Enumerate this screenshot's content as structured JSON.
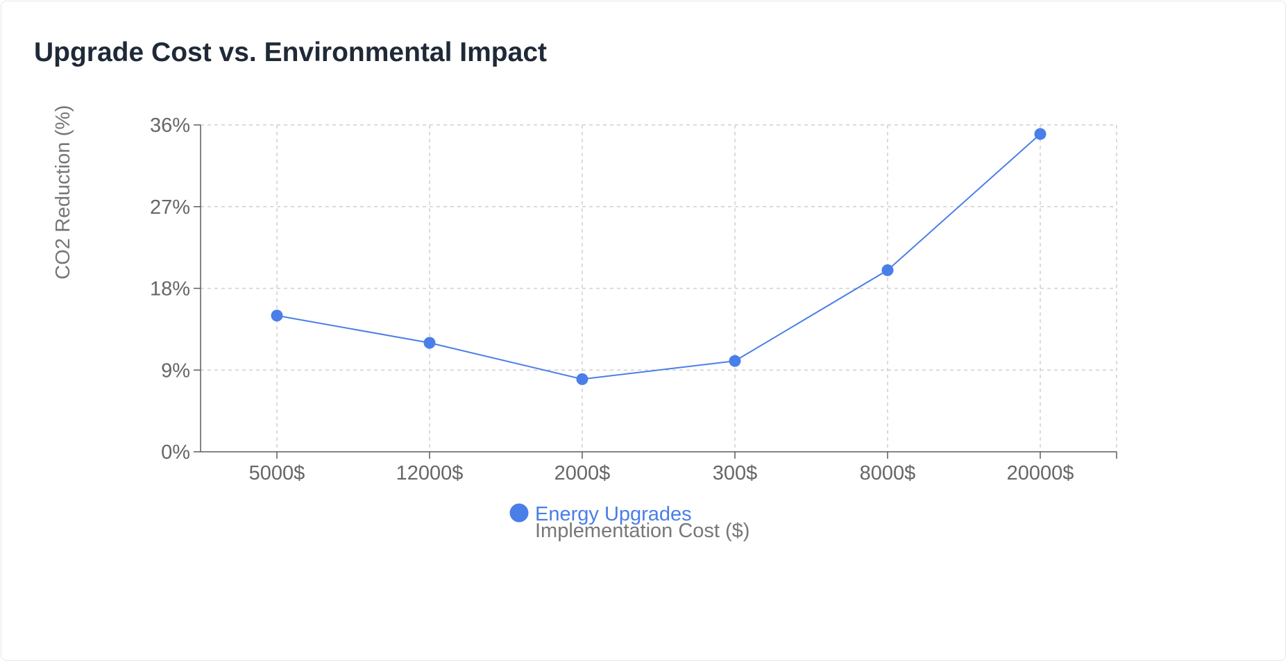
{
  "card": {
    "title": "Upgrade Cost vs. Environmental Impact"
  },
  "chart_data": {
    "type": "line",
    "title": "Upgrade Cost vs. Environmental Impact",
    "xlabel": "Implementation Cost ($)",
    "ylabel": "CO2 Reduction (%)",
    "categories": [
      "5000$",
      "12000$",
      "2000$",
      "300$",
      "8000$",
      "20000$"
    ],
    "series": [
      {
        "name": "Energy Upgrades",
        "values": [
          15,
          12,
          8,
          10,
          20,
          35
        ],
        "color": "#4a7ee8"
      }
    ],
    "yticks": [
      "0%",
      "9%",
      "18%",
      "27%",
      "36%"
    ],
    "ylim": [
      0,
      36
    ],
    "grid": true,
    "grid_style": "dashed",
    "legend_position": "bottom-center"
  }
}
